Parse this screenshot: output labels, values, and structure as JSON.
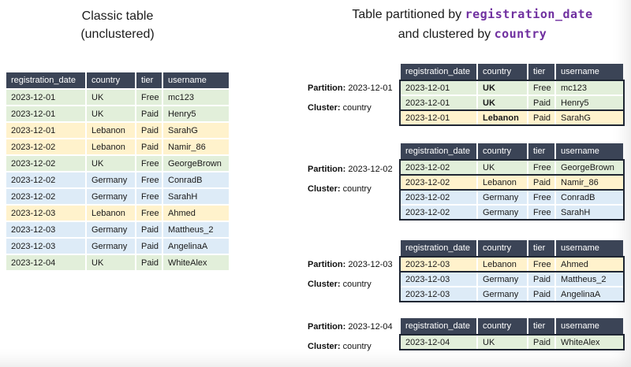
{
  "colors": {
    "header_bg": "#3b4456",
    "header_text": "#ffffff",
    "row_uk": "#e2efda",
    "row_lebanon": "#fff2cc",
    "row_germany": "#ddebf7",
    "cluster_border": "#1f2633",
    "code_purple": "#7030a0"
  },
  "columns": [
    "registration_date",
    "country",
    "tier",
    "username"
  ],
  "row_colors": {
    "UK": "#e2efda",
    "Lebanon": "#fff2cc",
    "Germany": "#ddebf7"
  },
  "left": {
    "title_line1": "Classic table",
    "title_line2": "(unclustered)",
    "rows": [
      [
        "2023-12-01",
        "UK",
        "Free",
        "mc123"
      ],
      [
        "2023-12-01",
        "UK",
        "Paid",
        "Henry5"
      ],
      [
        "2023-12-01",
        "Lebanon",
        "Paid",
        "SarahG"
      ],
      [
        "2023-12-02",
        "Lebanon",
        "Paid",
        "Namir_86"
      ],
      [
        "2023-12-02",
        "UK",
        "Free",
        "GeorgeBrown"
      ],
      [
        "2023-12-02",
        "Germany",
        "Free",
        "ConradB"
      ],
      [
        "2023-12-02",
        "Germany",
        "Free",
        "SarahH"
      ],
      [
        "2023-12-03",
        "Lebanon",
        "Free",
        "Ahmed"
      ],
      [
        "2023-12-03",
        "Germany",
        "Paid",
        "Mattheus_2"
      ],
      [
        "2023-12-03",
        "Germany",
        "Paid",
        "AngelinaA"
      ],
      [
        "2023-12-04",
        "UK",
        "Paid",
        "WhiteAlex"
      ]
    ]
  },
  "right": {
    "title": {
      "line1_text": "Table partitioned by ",
      "line1_code": "registration_date",
      "line2_text": "and clustered by ",
      "line2_code": "country"
    },
    "partitions": [
      {
        "partition_label": "Partition:",
        "partition_value": "2023-12-01",
        "cluster_label": "Cluster:",
        "cluster_value": "country",
        "country_bold": true,
        "groups": [
          [
            [
              "2023-12-01",
              "UK",
              "Free",
              "mc123"
            ],
            [
              "2023-12-01",
              "UK",
              "Paid",
              "Henry5"
            ]
          ],
          [
            [
              "2023-12-01",
              "Lebanon",
              "Paid",
              "SarahG"
            ]
          ]
        ]
      },
      {
        "partition_label": "Partition:",
        "partition_value": "2023-12-02",
        "cluster_label": "Cluster:",
        "cluster_value": "country",
        "country_bold": false,
        "groups": [
          [
            [
              "2023-12-02",
              "UK",
              "Free",
              "GeorgeBrown"
            ]
          ],
          [
            [
              "2023-12-02",
              "Lebanon",
              "Paid",
              "Namir_86"
            ]
          ],
          [
            [
              "2023-12-02",
              "Germany",
              "Free",
              "ConradB"
            ],
            [
              "2023-12-02",
              "Germany",
              "Free",
              "SarahH"
            ]
          ]
        ]
      },
      {
        "partition_label": "Partition:",
        "partition_value": "2023-12-03",
        "cluster_label": "Cluster:",
        "cluster_value": "country",
        "country_bold": false,
        "groups": [
          [
            [
              "2023-12-03",
              "Lebanon",
              "Free",
              "Ahmed"
            ]
          ],
          [
            [
              "2023-12-03",
              "Germany",
              "Paid",
              "Mattheus_2"
            ],
            [
              "2023-12-03",
              "Germany",
              "Paid",
              "AngelinaA"
            ]
          ]
        ]
      },
      {
        "partition_label": "Partition:",
        "partition_value": "2023-12-04",
        "cluster_label": "Cluster:",
        "cluster_value": "country",
        "country_bold": false,
        "groups": [
          [
            [
              "2023-12-04",
              "UK",
              "Paid",
              "WhiteAlex"
            ]
          ]
        ]
      }
    ]
  }
}
